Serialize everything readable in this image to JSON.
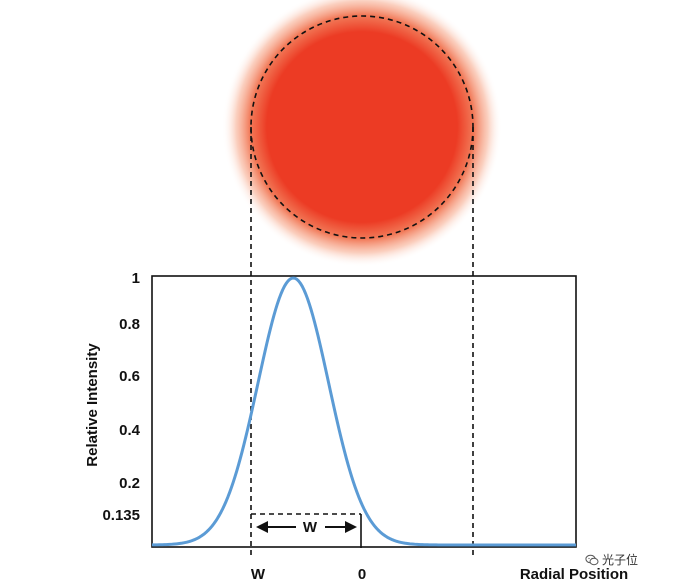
{
  "diagram": {
    "y_axis_label": "Relative Intensity",
    "x_axis_label": "Radial Position",
    "y_ticks": [
      "1",
      "0.8",
      "0.6",
      "0.4",
      "0.2",
      "0.135"
    ],
    "x_ticks": [
      "W",
      "0"
    ],
    "width_marker_label": "W",
    "beam_color": "#ec3b24",
    "curve_color": "#5b9bd5"
  },
  "chart_data": {
    "type": "line",
    "title": "",
    "xlabel": "Radial Position",
    "ylabel": "Relative Intensity",
    "ylim": [
      0,
      1
    ],
    "xlim": [
      -2,
      4
    ],
    "y_tick_values": [
      1,
      0.8,
      0.6,
      0.4,
      0.2,
      0.135
    ],
    "x_tick_values": [
      -1,
      0
    ],
    "series": [
      {
        "x": [
          -2.0,
          -1.75,
          -1.5,
          -1.25,
          -1.0,
          -0.75,
          -0.5,
          -0.25,
          0,
          0.25,
          0.5,
          0.75,
          1.0,
          1.25,
          1.5,
          1.75,
          2.0,
          2.5,
          3.0,
          3.5,
          4.0
        ],
        "values": [
          0.0,
          0.002,
          0.011,
          0.044,
          0.135,
          0.325,
          0.607,
          0.882,
          1.0,
          0.882,
          0.607,
          0.325,
          0.135,
          0.044,
          0.011,
          0.002,
          0.0,
          0.0,
          0.0,
          0.0,
          0.0
        ]
      }
    ],
    "grid": false
  },
  "watermark": {
    "text": "光子位"
  }
}
